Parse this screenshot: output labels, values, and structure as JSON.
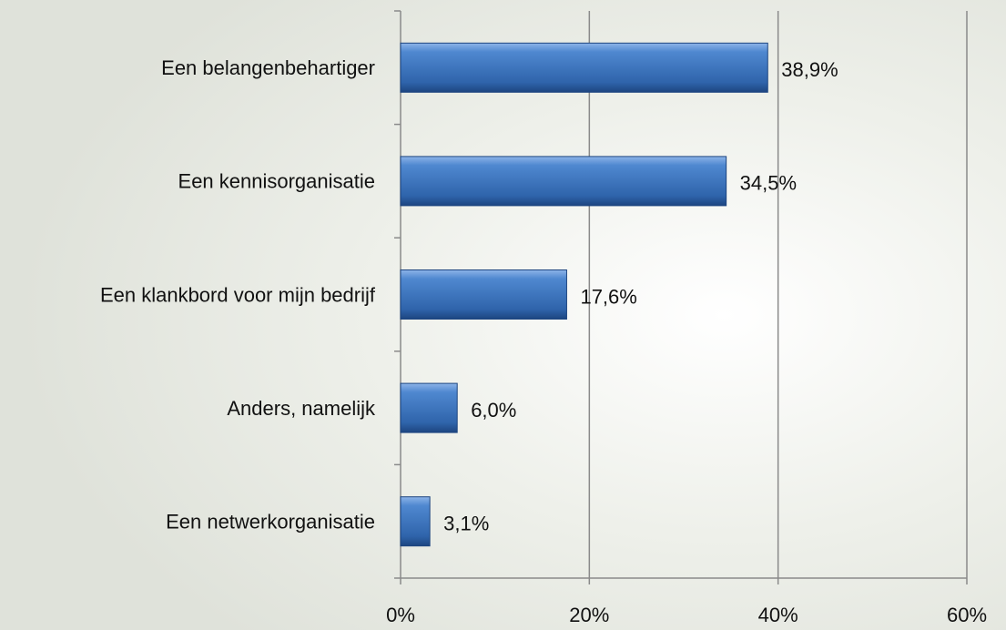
{
  "chart_data": {
    "type": "bar",
    "orientation": "horizontal",
    "categories": [
      "Een belangenbehartiger",
      "Een kennisorganisatie",
      "Een klankbord voor mijn bedrijf",
      "Anders, namelijk",
      "Een netwerkorganisatie"
    ],
    "values": [
      38.9,
      34.5,
      17.6,
      6.0,
      3.1
    ],
    "value_labels": [
      "38,9%",
      "34,5%",
      "17,6%",
      "6,0%",
      "3,1%"
    ],
    "color": "#3a72bd",
    "xlim": [
      0,
      60
    ],
    "xticks": [
      {
        "value": 0,
        "label": "0%"
      },
      {
        "value": 20,
        "label": "20%"
      },
      {
        "value": 40,
        "label": "40%"
      },
      {
        "value": 60,
        "label": "60%"
      }
    ],
    "grid": true
  }
}
